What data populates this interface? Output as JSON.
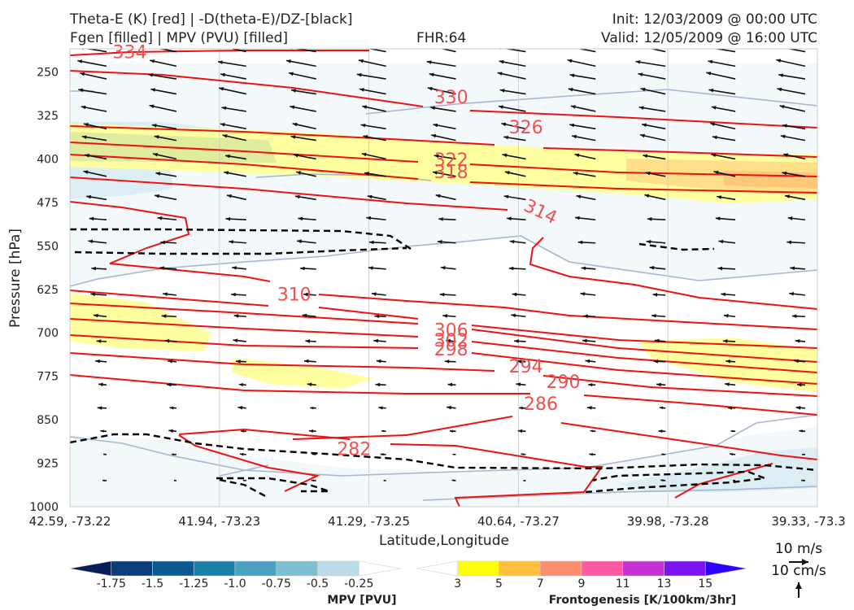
{
  "header": {
    "title_line1": "Theta-E (K) [red] | -D(theta-E)/DZ-[black]",
    "title_line2": "Fgen [filled] | MPV (PVU) [filled]",
    "fhr": "FHR:64",
    "init": "Init: 12/03/2009 @ 00:00 UTC",
    "valid": "Valid: 12/05/2009 @ 16:00 UTC"
  },
  "chart_data": {
    "type": "cross-section",
    "xlabel": "Latitude,Longitude",
    "ylabel": "Pressure [hPa]",
    "x_ticks": [
      "42.59, -73.22",
      "41.94, -73.23",
      "41.29, -73.25",
      "40.64, -73.27",
      "39.98, -73.28",
      "39.33, -73.3"
    ],
    "y_ticks": [
      250,
      325,
      400,
      475,
      550,
      625,
      700,
      775,
      850,
      925,
      1000
    ],
    "ylim": [
      1000,
      210
    ],
    "grid": true,
    "theta_e_contour_labels": [
      {
        "value": "334",
        "x": 0.4,
        "p": 215
      },
      {
        "value": "330",
        "x": 2.55,
        "p": 293
      },
      {
        "value": "326",
        "x": 3.05,
        "p": 345
      },
      {
        "value": "322",
        "x": 2.55,
        "p": 401
      },
      {
        "value": "318",
        "x": 2.55,
        "p": 422
      },
      {
        "value": "314",
        "x": 3.15,
        "p": 490
      },
      {
        "value": "310",
        "x": 1.5,
        "p": 633
      },
      {
        "value": "306",
        "x": 2.55,
        "p": 695
      },
      {
        "value": "302",
        "x": 2.55,
        "p": 712
      },
      {
        "value": "298",
        "x": 2.55,
        "p": 728
      },
      {
        "value": "294",
        "x": 3.05,
        "p": 757
      },
      {
        "value": "290",
        "x": 3.3,
        "p": 784
      },
      {
        "value": "286",
        "x": 3.15,
        "p": 822
      },
      {
        "value": "282",
        "x": 1.9,
        "p": 900
      }
    ],
    "wind_key": {
      "top": "10 m/s",
      "bottom": "10 cm/s"
    },
    "colorbar_mpv": {
      "label": "MPV [PVU]",
      "ticks": [
        "-1.75",
        "-1.5",
        "-1.25",
        "-1.0",
        "-0.75",
        "-0.5",
        "-0.25"
      ],
      "colors": [
        "#081d58",
        "#0b3d7a",
        "#0a5a91",
        "#1a80a8",
        "#4aa2c0",
        "#7dbed3",
        "#b9dce6",
        "#ffffff"
      ]
    },
    "colorbar_fgen": {
      "label": "Frontogenesis [K/100km/3hr]",
      "ticks": [
        "3",
        "5",
        "7",
        "9",
        "11",
        "13",
        "15"
      ],
      "colors": [
        "#ffffff",
        "#ffff0a",
        "#ffbe3c",
        "#ff8c6e",
        "#ff5aa0",
        "#c832d2",
        "#7d14f0",
        "#2d00ff"
      ]
    }
  }
}
